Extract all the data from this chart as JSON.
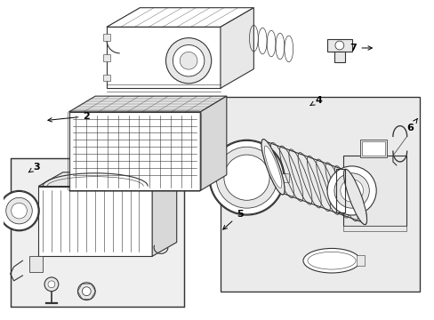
{
  "bg_color": "#ffffff",
  "line_color": "#333333",
  "shade_color": "#e8e8e8",
  "panel_color": "#ebebeb",
  "fig_width": 4.89,
  "fig_height": 3.6,
  "dpi": 100
}
